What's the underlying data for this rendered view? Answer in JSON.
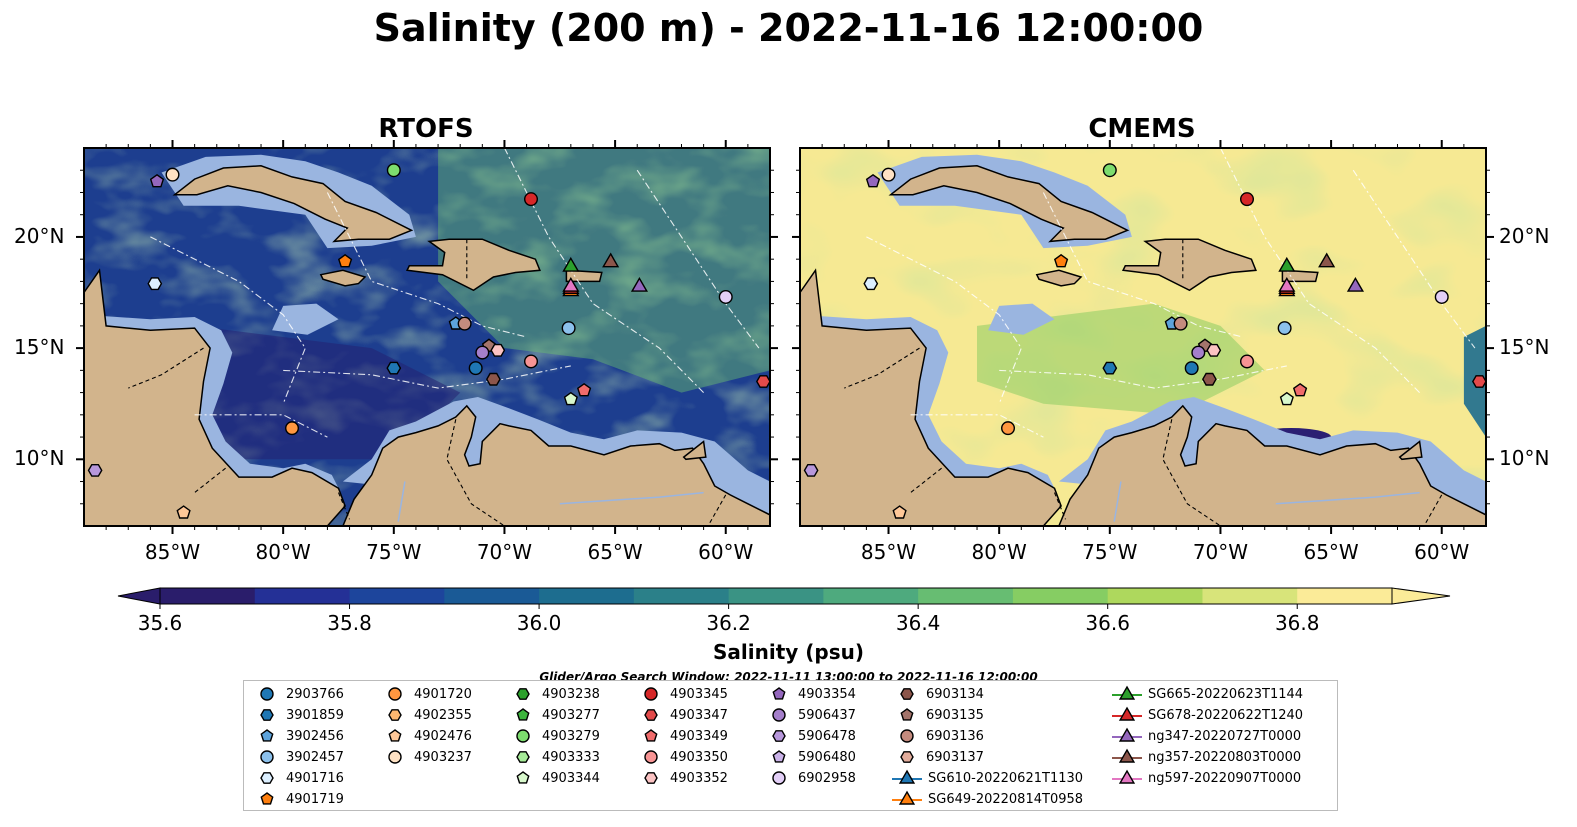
{
  "figure_title": "Salinity (200 m) - 2022-11-16 12:00:00",
  "panels": [
    {
      "title": "RTOFS",
      "model": "rtofs"
    },
    {
      "title": "CMEMS",
      "model": "cmems"
    }
  ],
  "lon_ticks": [
    "85°W",
    "80°W",
    "75°W",
    "70°W",
    "65°W",
    "60°W"
  ],
  "lat_ticks": [
    "20°N",
    "15°N",
    "10°N"
  ],
  "colorbar": {
    "label": "Salinity (psu)",
    "ticks": [
      "35.6",
      "35.8",
      "36.0",
      "36.2",
      "36.4",
      "36.6",
      "36.8"
    ],
    "min": 35.6,
    "max": 36.9,
    "step": 0.1,
    "colors": [
      "#2a1d6b",
      "#243096",
      "#1d459c",
      "#1a5a96",
      "#1d6d8f",
      "#2b8089",
      "#3a9384",
      "#4eaa7e",
      "#67bd72",
      "#86cd63",
      "#aed85d",
      "#d8e47a",
      "#fbeb98"
    ]
  },
  "search_window": "Glider/Argo Search Window: 2022-11-11 13:00:00 to 2022-11-16 12:00:00",
  "legend": {
    "items": [
      {
        "id": "2903766",
        "color": "#1f77b4",
        "marker": "circle"
      },
      {
        "id": "3901859",
        "color": "#1f77b4",
        "marker": "hexagon"
      },
      {
        "id": "3902456",
        "color": "#5da3db",
        "marker": "pentagon"
      },
      {
        "id": "3902457",
        "color": "#8cc1ec",
        "marker": "circle"
      },
      {
        "id": "4901716",
        "color": "#dcefff",
        "marker": "hexagon"
      },
      {
        "id": "4901719",
        "color": "#ff7f0e",
        "marker": "pentagon"
      },
      {
        "id": "4901720",
        "color": "#ff9740",
        "marker": "circle"
      },
      {
        "id": "4902355",
        "color": "#ffb870",
        "marker": "hexagon"
      },
      {
        "id": "4902476",
        "color": "#ffc898",
        "marker": "pentagon"
      },
      {
        "id": "4903237",
        "color": "#ffe2c4",
        "marker": "circle"
      },
      {
        "id": "4903238",
        "color": "#2ca02c",
        "marker": "hexagon"
      },
      {
        "id": "4903277",
        "color": "#3cb43c",
        "marker": "pentagon"
      },
      {
        "id": "4903279",
        "color": "#7ddc6e",
        "marker": "circle"
      },
      {
        "id": "4903333",
        "color": "#a6eb98",
        "marker": "hexagon"
      },
      {
        "id": "4903344",
        "color": "#d8f8cc",
        "marker": "pentagon"
      },
      {
        "id": "4903345",
        "color": "#d62728",
        "marker": "circle"
      },
      {
        "id": "4903347",
        "color": "#e34a4a",
        "marker": "hexagon"
      },
      {
        "id": "4903349",
        "color": "#f06b6b",
        "marker": "pentagon"
      },
      {
        "id": "4903350",
        "color": "#f79494",
        "marker": "circle"
      },
      {
        "id": "4903352",
        "color": "#fbc3c3",
        "marker": "hexagon"
      },
      {
        "id": "4903354",
        "color": "#9467bd",
        "marker": "pentagon"
      },
      {
        "id": "5906437",
        "color": "#a57fcb",
        "marker": "circle"
      },
      {
        "id": "5906478",
        "color": "#b797db",
        "marker": "hexagon"
      },
      {
        "id": "5906480",
        "color": "#cab2e8",
        "marker": "pentagon"
      },
      {
        "id": "6902958",
        "color": "#e3cff7",
        "marker": "circle"
      },
      {
        "id": "6903134",
        "color": "#8c564b",
        "marker": "hexagon"
      },
      {
        "id": "6903135",
        "color": "#a4746b",
        "marker": "pentagon"
      },
      {
        "id": "6903136",
        "color": "#c48b7e",
        "marker": "circle"
      },
      {
        "id": "6903137",
        "color": "#e3ad9c",
        "marker": "hexagon"
      },
      {
        "id": "SG610-20220621T1130",
        "color": "#1f77b4",
        "marker": "triangle"
      },
      {
        "id": "SG649-20220814T0958",
        "color": "#ff7f0e",
        "marker": "triangle"
      },
      {
        "id": "SG665-20220623T1144",
        "color": "#2ca02c",
        "marker": "triangle"
      },
      {
        "id": "SG678-20220622T1240",
        "color": "#d62728",
        "marker": "triangle"
      },
      {
        "id": "ng347-20220727T0000",
        "color": "#9467bd",
        "marker": "triangle"
      },
      {
        "id": "ng357-20220803T0000",
        "color": "#8c564b",
        "marker": "triangle"
      },
      {
        "id": "ng597-20220907T0000",
        "color": "#e377c2",
        "marker": "triangle"
      }
    ]
  },
  "map_extent": {
    "lon_min": -89,
    "lon_max": -58,
    "lat_min": 7,
    "lat_max": 24
  },
  "observations": [
    {
      "id": "4903345",
      "lon": -68.8,
      "lat": 21.7
    },
    {
      "id": "4903279",
      "lon": -75.0,
      "lat": 23.0
    },
    {
      "id": "4903237",
      "lon": -85.0,
      "lat": 22.8
    },
    {
      "id": "4903354",
      "lon": -85.7,
      "lat": 22.5
    },
    {
      "id": "4901719",
      "lon": -77.2,
      "lat": 18.9
    },
    {
      "id": "4901716",
      "lon": -85.8,
      "lat": 17.9
    },
    {
      "id": "SG665-20220623T1144",
      "lon": -67.0,
      "lat": 18.7
    },
    {
      "id": "ng357-20220803T0000",
      "lon": -65.2,
      "lat": 18.9
    },
    {
      "id": "SG649-20220814T0958",
      "lon": -67.0,
      "lat": 17.6
    },
    {
      "id": "SG678-20220622T1240",
      "lon": -67.0,
      "lat": 17.7
    },
    {
      "id": "ng597-20220907T0000",
      "lon": -67.0,
      "lat": 17.8
    },
    {
      "id": "ng347-20220727T0000",
      "lon": -63.9,
      "lat": 17.8
    },
    {
      "id": "6902958",
      "lon": -60.0,
      "lat": 17.3
    },
    {
      "id": "3902456",
      "lon": -72.2,
      "lat": 16.1
    },
    {
      "id": "6903136",
      "lon": -71.8,
      "lat": 16.1
    },
    {
      "id": "3902457",
      "lon": -67.1,
      "lat": 15.9
    },
    {
      "id": "6903135",
      "lon": -70.7,
      "lat": 15.1
    },
    {
      "id": "5906437",
      "lon": -71.0,
      "lat": 14.8
    },
    {
      "id": "4903352",
      "lon": -70.3,
      "lat": 14.9
    },
    {
      "id": "4903350",
      "lon": -68.8,
      "lat": 14.4
    },
    {
      "id": "3901859",
      "lon": -75.0,
      "lat": 14.1
    },
    {
      "id": "2903766",
      "lon": -71.3,
      "lat": 14.1
    },
    {
      "id": "6903134",
      "lon": -70.5,
      "lat": 13.6
    },
    {
      "id": "4903347",
      "lon": -58.3,
      "lat": 13.5
    },
    {
      "id": "4903349",
      "lon": -66.4,
      "lat": 13.1
    },
    {
      "id": "4903344",
      "lon": -67.0,
      "lat": 12.7
    },
    {
      "id": "4901720",
      "lon": -79.6,
      "lat": 11.4
    },
    {
      "id": "5906478",
      "lon": -88.5,
      "lat": 9.5
    },
    {
      "id": "4902476",
      "lon": -84.5,
      "lat": 7.6
    }
  ]
}
